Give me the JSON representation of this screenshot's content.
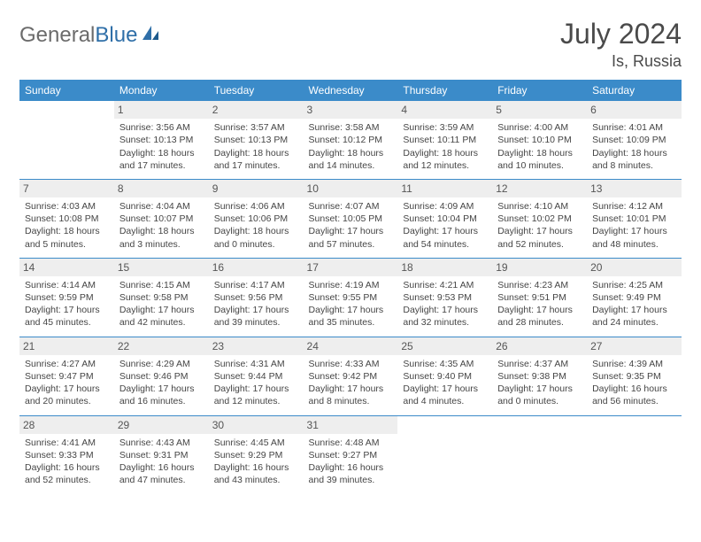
{
  "brand": {
    "part1": "General",
    "part2": "Blue"
  },
  "title": "July 2024",
  "location": "Is, Russia",
  "colors": {
    "header_bg": "#3b8bc9",
    "header_text": "#ffffff",
    "day_header_bg": "#eeeeee",
    "rule": "#3b8bc9",
    "text": "#454545",
    "logo_gray": "#6b6b6b",
    "logo_blue": "#2f6fa8"
  },
  "weekdays": [
    "Sunday",
    "Monday",
    "Tuesday",
    "Wednesday",
    "Thursday",
    "Friday",
    "Saturday"
  ],
  "weeks": [
    [
      {
        "n": "",
        "lines": []
      },
      {
        "n": "1",
        "lines": [
          "Sunrise: 3:56 AM",
          "Sunset: 10:13 PM",
          "Daylight: 18 hours and 17 minutes."
        ]
      },
      {
        "n": "2",
        "lines": [
          "Sunrise: 3:57 AM",
          "Sunset: 10:13 PM",
          "Daylight: 18 hours and 17 minutes."
        ]
      },
      {
        "n": "3",
        "lines": [
          "Sunrise: 3:58 AM",
          "Sunset: 10:12 PM",
          "Daylight: 18 hours and 14 minutes."
        ]
      },
      {
        "n": "4",
        "lines": [
          "Sunrise: 3:59 AM",
          "Sunset: 10:11 PM",
          "Daylight: 18 hours and 12 minutes."
        ]
      },
      {
        "n": "5",
        "lines": [
          "Sunrise: 4:00 AM",
          "Sunset: 10:10 PM",
          "Daylight: 18 hours and 10 minutes."
        ]
      },
      {
        "n": "6",
        "lines": [
          "Sunrise: 4:01 AM",
          "Sunset: 10:09 PM",
          "Daylight: 18 hours and 8 minutes."
        ]
      }
    ],
    [
      {
        "n": "7",
        "lines": [
          "Sunrise: 4:03 AM",
          "Sunset: 10:08 PM",
          "Daylight: 18 hours and 5 minutes."
        ]
      },
      {
        "n": "8",
        "lines": [
          "Sunrise: 4:04 AM",
          "Sunset: 10:07 PM",
          "Daylight: 18 hours and 3 minutes."
        ]
      },
      {
        "n": "9",
        "lines": [
          "Sunrise: 4:06 AM",
          "Sunset: 10:06 PM",
          "Daylight: 18 hours and 0 minutes."
        ]
      },
      {
        "n": "10",
        "lines": [
          "Sunrise: 4:07 AM",
          "Sunset: 10:05 PM",
          "Daylight: 17 hours and 57 minutes."
        ]
      },
      {
        "n": "11",
        "lines": [
          "Sunrise: 4:09 AM",
          "Sunset: 10:04 PM",
          "Daylight: 17 hours and 54 minutes."
        ]
      },
      {
        "n": "12",
        "lines": [
          "Sunrise: 4:10 AM",
          "Sunset: 10:02 PM",
          "Daylight: 17 hours and 52 minutes."
        ]
      },
      {
        "n": "13",
        "lines": [
          "Sunrise: 4:12 AM",
          "Sunset: 10:01 PM",
          "Daylight: 17 hours and 48 minutes."
        ]
      }
    ],
    [
      {
        "n": "14",
        "lines": [
          "Sunrise: 4:14 AM",
          "Sunset: 9:59 PM",
          "Daylight: 17 hours and 45 minutes."
        ]
      },
      {
        "n": "15",
        "lines": [
          "Sunrise: 4:15 AM",
          "Sunset: 9:58 PM",
          "Daylight: 17 hours and 42 minutes."
        ]
      },
      {
        "n": "16",
        "lines": [
          "Sunrise: 4:17 AM",
          "Sunset: 9:56 PM",
          "Daylight: 17 hours and 39 minutes."
        ]
      },
      {
        "n": "17",
        "lines": [
          "Sunrise: 4:19 AM",
          "Sunset: 9:55 PM",
          "Daylight: 17 hours and 35 minutes."
        ]
      },
      {
        "n": "18",
        "lines": [
          "Sunrise: 4:21 AM",
          "Sunset: 9:53 PM",
          "Daylight: 17 hours and 32 minutes."
        ]
      },
      {
        "n": "19",
        "lines": [
          "Sunrise: 4:23 AM",
          "Sunset: 9:51 PM",
          "Daylight: 17 hours and 28 minutes."
        ]
      },
      {
        "n": "20",
        "lines": [
          "Sunrise: 4:25 AM",
          "Sunset: 9:49 PM",
          "Daylight: 17 hours and 24 minutes."
        ]
      }
    ],
    [
      {
        "n": "21",
        "lines": [
          "Sunrise: 4:27 AM",
          "Sunset: 9:47 PM",
          "Daylight: 17 hours and 20 minutes."
        ]
      },
      {
        "n": "22",
        "lines": [
          "Sunrise: 4:29 AM",
          "Sunset: 9:46 PM",
          "Daylight: 17 hours and 16 minutes."
        ]
      },
      {
        "n": "23",
        "lines": [
          "Sunrise: 4:31 AM",
          "Sunset: 9:44 PM",
          "Daylight: 17 hours and 12 minutes."
        ]
      },
      {
        "n": "24",
        "lines": [
          "Sunrise: 4:33 AM",
          "Sunset: 9:42 PM",
          "Daylight: 17 hours and 8 minutes."
        ]
      },
      {
        "n": "25",
        "lines": [
          "Sunrise: 4:35 AM",
          "Sunset: 9:40 PM",
          "Daylight: 17 hours and 4 minutes."
        ]
      },
      {
        "n": "26",
        "lines": [
          "Sunrise: 4:37 AM",
          "Sunset: 9:38 PM",
          "Daylight: 17 hours and 0 minutes."
        ]
      },
      {
        "n": "27",
        "lines": [
          "Sunrise: 4:39 AM",
          "Sunset: 9:35 PM",
          "Daylight: 16 hours and 56 minutes."
        ]
      }
    ],
    [
      {
        "n": "28",
        "lines": [
          "Sunrise: 4:41 AM",
          "Sunset: 9:33 PM",
          "Daylight: 16 hours and 52 minutes."
        ]
      },
      {
        "n": "29",
        "lines": [
          "Sunrise: 4:43 AM",
          "Sunset: 9:31 PM",
          "Daylight: 16 hours and 47 minutes."
        ]
      },
      {
        "n": "30",
        "lines": [
          "Sunrise: 4:45 AM",
          "Sunset: 9:29 PM",
          "Daylight: 16 hours and 43 minutes."
        ]
      },
      {
        "n": "31",
        "lines": [
          "Sunrise: 4:48 AM",
          "Sunset: 9:27 PM",
          "Daylight: 16 hours and 39 minutes."
        ]
      },
      {
        "n": "",
        "lines": []
      },
      {
        "n": "",
        "lines": []
      },
      {
        "n": "",
        "lines": []
      }
    ]
  ]
}
